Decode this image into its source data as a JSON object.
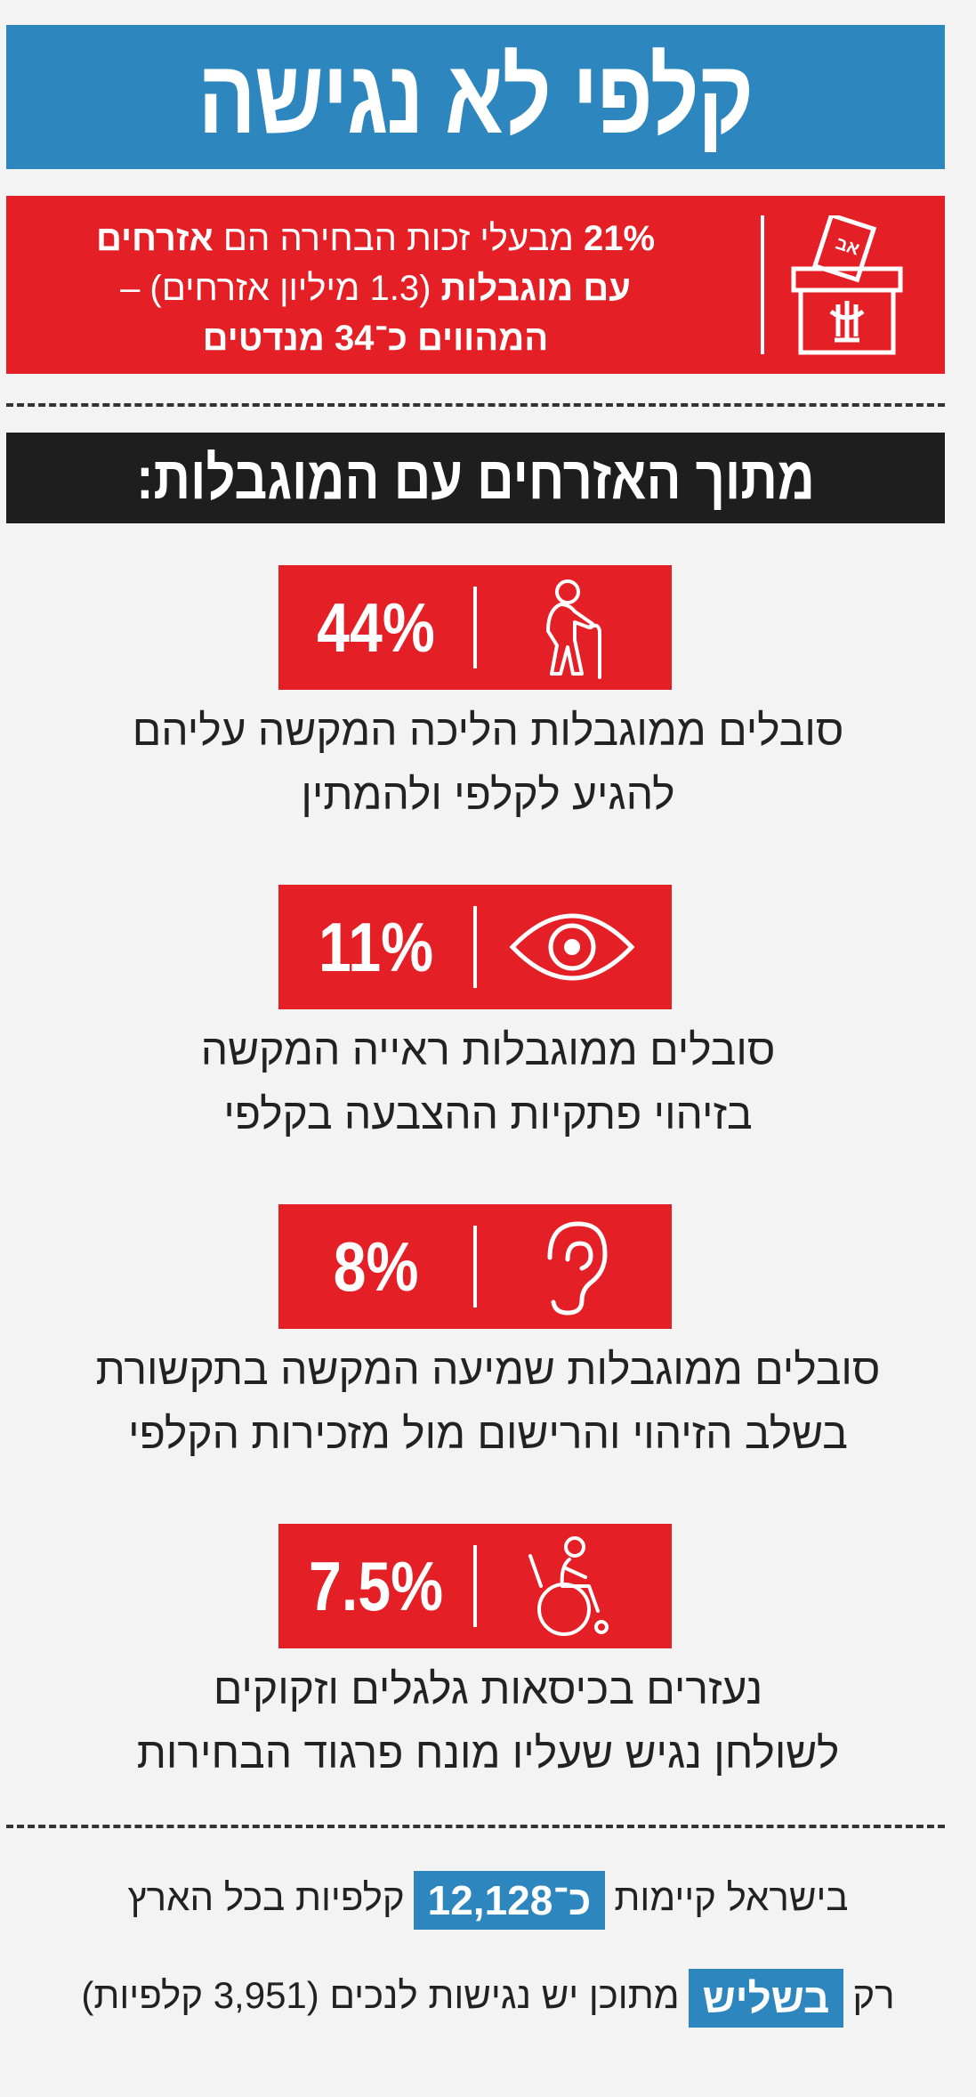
{
  "header": {
    "title": "קלפי לא נגישה"
  },
  "intro": {
    "line1_pct": "21%",
    "line1_mid": " מבעלי זכות הבחירה הם ",
    "line1_bold": "אזרחים",
    "line2_bold": "עם מוגבלות",
    "line2_rest": " (1.3 מיליון אזרחים) –",
    "line3": "המהווים כ־34 מנדטים",
    "ballot_icon": "ballot-box-icon",
    "ballot_slip_text": "אב"
  },
  "subheader": {
    "title": "מתוך האזרחים עם המוגבלות:"
  },
  "stats": [
    {
      "value": "44%",
      "icon": "elderly-walking-cane-icon",
      "line1": "סובלים ממוגבלות הליכה המקשה עליהם",
      "line2": "להגיע לקלפי ולהמתין"
    },
    {
      "value": "11%",
      "icon": "eye-icon",
      "line1": "סובלים ממוגבלות ראייה המקשה",
      "line2": "בזיהוי פתקיות ההצבעה בקלפי"
    },
    {
      "value": "8%",
      "icon": "ear-icon",
      "line1": "סובלים ממוגבלות שמיעה המקשה בתקשורת",
      "line2": "בשלב הזיהוי והרישום מול מזכירות הקלפי"
    },
    {
      "value": "7.5%",
      "icon": "wheelchair-icon",
      "line1": "נעזרים בכיסאות גלגלים וזקוקים",
      "line2": "לשולחן נגיש שעליו מונח פרגוד הבחירות"
    }
  ],
  "footer": {
    "line1_pre": "בישראל קיימות",
    "line1_highlight": "כ־12,128",
    "line1_post": "קלפיות בכל הארץ",
    "line2_pre": "רק",
    "line2_highlight": "בשליש",
    "line2_post": "מתוכן יש נגישות לנכים (3,951 קלפיות)"
  },
  "colors": {
    "red": "#e51f26",
    "blue": "#2d86be",
    "black": "#1e1e1e"
  }
}
